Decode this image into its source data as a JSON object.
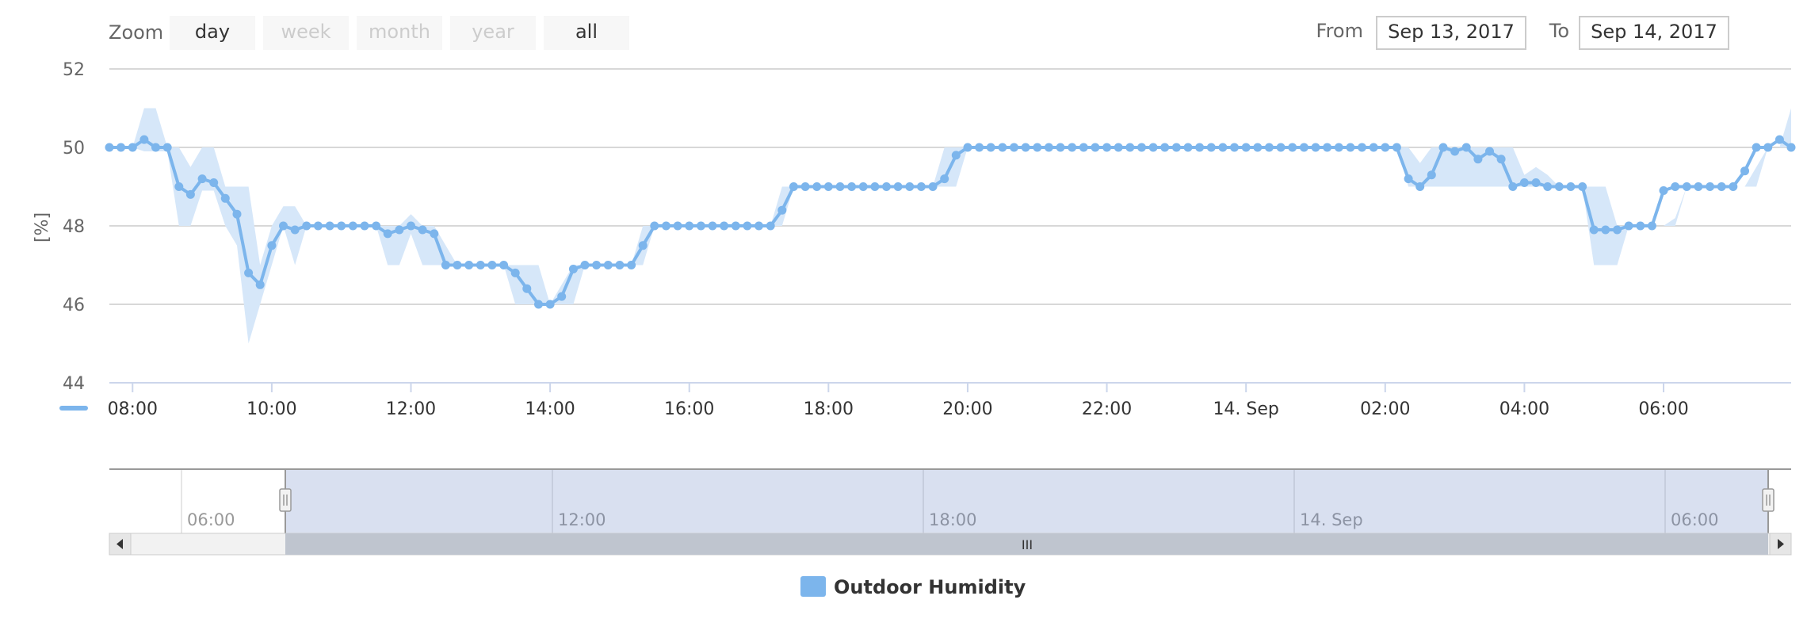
{
  "toolbar": {
    "zoom_label": "Zoom",
    "buttons": [
      {
        "label": "day",
        "enabled": true
      },
      {
        "label": "week",
        "enabled": false
      },
      {
        "label": "month",
        "enabled": false
      },
      {
        "label": "year",
        "enabled": false
      },
      {
        "label": "all",
        "enabled": true
      }
    ],
    "from_label": "From",
    "from_value": "Sep 13, 2017",
    "to_label": "To",
    "to_value": "Sep 14, 2017"
  },
  "legend": {
    "label": "Outdoor Humidity"
  },
  "navigator": {
    "tick_labels": [
      "06:00",
      "12:00",
      "18:00",
      "14. Sep",
      "06:00"
    ],
    "scrollbar_grip": "III"
  },
  "colors": {
    "series": "#7cb5ec",
    "range": "#d6e7f9",
    "grid": "#d8d8d8",
    "axis": "#ccd6eb",
    "navigator_mask": "rgba(102,133,194,0.25)"
  },
  "chart_data": {
    "type": "line",
    "title": "",
    "ylabel": "[%]",
    "ylim": [
      44,
      52
    ],
    "y_ticks": [
      "44",
      "46",
      "48",
      "50",
      "52"
    ],
    "x_ticks": [
      {
        "t": "2017-09-13 08:00",
        "label": "08:00"
      },
      {
        "t": "2017-09-13 10:00",
        "label": "10:00"
      },
      {
        "t": "2017-09-13 12:00",
        "label": "12:00"
      },
      {
        "t": "2017-09-13 14:00",
        "label": "14:00"
      },
      {
        "t": "2017-09-13 16:00",
        "label": "16:00"
      },
      {
        "t": "2017-09-13 18:00",
        "label": "18:00"
      },
      {
        "t": "2017-09-13 20:00",
        "label": "20:00"
      },
      {
        "t": "2017-09-13 22:00",
        "label": "22:00"
      },
      {
        "t": "2017-09-14 00:00",
        "label": "14. Sep"
      },
      {
        "t": "2017-09-14 02:00",
        "label": "02:00"
      },
      {
        "t": "2017-09-14 04:00",
        "label": "04:00"
      },
      {
        "t": "2017-09-14 06:00",
        "label": "06:00"
      }
    ],
    "xlim": [
      "2017-09-13 07:40",
      "2017-09-14 07:50"
    ],
    "series": [
      {
        "name": "Outdoor Humidity",
        "x": [
          "2017-09-13 07:40",
          "2017-09-13 07:50",
          "2017-09-13 08:00",
          "2017-09-13 08:10",
          "2017-09-13 08:20",
          "2017-09-13 08:30",
          "2017-09-13 08:40",
          "2017-09-13 08:50",
          "2017-09-13 09:00",
          "2017-09-13 09:10",
          "2017-09-13 09:20",
          "2017-09-13 09:30",
          "2017-09-13 09:40",
          "2017-09-13 09:50",
          "2017-09-13 10:00",
          "2017-09-13 10:10",
          "2017-09-13 10:20",
          "2017-09-13 10:30",
          "2017-09-13 10:40",
          "2017-09-13 10:50",
          "2017-09-13 11:00",
          "2017-09-13 11:10",
          "2017-09-13 11:20",
          "2017-09-13 11:30",
          "2017-09-13 11:40",
          "2017-09-13 11:50",
          "2017-09-13 12:00",
          "2017-09-13 12:10",
          "2017-09-13 12:20",
          "2017-09-13 12:30",
          "2017-09-13 12:40",
          "2017-09-13 12:50",
          "2017-09-13 13:00",
          "2017-09-13 13:10",
          "2017-09-13 13:20",
          "2017-09-13 13:30",
          "2017-09-13 13:40",
          "2017-09-13 13:50",
          "2017-09-13 14:00",
          "2017-09-13 14:10",
          "2017-09-13 14:20",
          "2017-09-13 14:30",
          "2017-09-13 14:40",
          "2017-09-13 14:50",
          "2017-09-13 15:00",
          "2017-09-13 15:10",
          "2017-09-13 15:20",
          "2017-09-13 15:30",
          "2017-09-13 15:40",
          "2017-09-13 15:50",
          "2017-09-13 16:00",
          "2017-09-13 16:10",
          "2017-09-13 16:20",
          "2017-09-13 16:30",
          "2017-09-13 16:40",
          "2017-09-13 16:50",
          "2017-09-13 17:00",
          "2017-09-13 17:10",
          "2017-09-13 17:20",
          "2017-09-13 17:30",
          "2017-09-13 17:40",
          "2017-09-13 17:50",
          "2017-09-13 18:00",
          "2017-09-13 18:10",
          "2017-09-13 18:20",
          "2017-09-13 18:30",
          "2017-09-13 18:40",
          "2017-09-13 18:50",
          "2017-09-13 19:00",
          "2017-09-13 19:10",
          "2017-09-13 19:20",
          "2017-09-13 19:30",
          "2017-09-13 19:40",
          "2017-09-13 19:50",
          "2017-09-13 20:00",
          "2017-09-13 20:10",
          "2017-09-13 20:20",
          "2017-09-13 20:30",
          "2017-09-13 20:40",
          "2017-09-13 20:50",
          "2017-09-13 21:00",
          "2017-09-13 21:10",
          "2017-09-13 21:20",
          "2017-09-13 21:30",
          "2017-09-13 21:40",
          "2017-09-13 21:50",
          "2017-09-13 22:00",
          "2017-09-13 22:10",
          "2017-09-13 22:20",
          "2017-09-13 22:30",
          "2017-09-13 22:40",
          "2017-09-13 22:50",
          "2017-09-13 23:00",
          "2017-09-13 23:10",
          "2017-09-13 23:20",
          "2017-09-13 23:30",
          "2017-09-13 23:40",
          "2017-09-13 23:50",
          "2017-09-14 00:00",
          "2017-09-14 00:10",
          "2017-09-14 00:20",
          "2017-09-14 00:30",
          "2017-09-14 00:40",
          "2017-09-14 00:50",
          "2017-09-14 01:00",
          "2017-09-14 01:10",
          "2017-09-14 01:20",
          "2017-09-14 01:30",
          "2017-09-14 01:40",
          "2017-09-14 01:50",
          "2017-09-14 02:00",
          "2017-09-14 02:10",
          "2017-09-14 02:20",
          "2017-09-14 02:30",
          "2017-09-14 02:40",
          "2017-09-14 02:50",
          "2017-09-14 03:00",
          "2017-09-14 03:10",
          "2017-09-14 03:20",
          "2017-09-14 03:30",
          "2017-09-14 03:40",
          "2017-09-14 03:50",
          "2017-09-14 04:00",
          "2017-09-14 04:10",
          "2017-09-14 04:20",
          "2017-09-14 04:30",
          "2017-09-14 04:40",
          "2017-09-14 04:50",
          "2017-09-14 05:00",
          "2017-09-14 05:10",
          "2017-09-14 05:20",
          "2017-09-14 05:30",
          "2017-09-14 05:40",
          "2017-09-14 05:50",
          "2017-09-14 06:00",
          "2017-09-14 06:10",
          "2017-09-14 06:20",
          "2017-09-14 06:30",
          "2017-09-14 06:40",
          "2017-09-14 06:50",
          "2017-09-14 07:00",
          "2017-09-14 07:10",
          "2017-09-14 07:20",
          "2017-09-14 07:30",
          "2017-09-14 07:40",
          "2017-09-14 07:50"
        ],
        "y": [
          50,
          50,
          50,
          50.2,
          50,
          50,
          49,
          48.8,
          49.2,
          49.1,
          48.7,
          48.3,
          46.8,
          46.5,
          47.5,
          48,
          47.9,
          48,
          48,
          48,
          48,
          48,
          48,
          48,
          47.8,
          47.9,
          48,
          47.9,
          47.8,
          47,
          47,
          47,
          47,
          47,
          47,
          46.8,
          46.4,
          46,
          46,
          46.2,
          46.9,
          47,
          47,
          47,
          47,
          47,
          47.5,
          48,
          48,
          48,
          48,
          48,
          48,
          48,
          48,
          48,
          48,
          48,
          48.4,
          49,
          49,
          49,
          49,
          49,
          49,
          49,
          49,
          49,
          49,
          49,
          49,
          49,
          49.2,
          49.8,
          50,
          50,
          50,
          50,
          50,
          50,
          50,
          50,
          50,
          50,
          50,
          50,
          50,
          50,
          50,
          50,
          50,
          50,
          50,
          50,
          50,
          50,
          50,
          50,
          50,
          50,
          50,
          50,
          50,
          50,
          50,
          50,
          50,
          50,
          50,
          50,
          50,
          50,
          49.2,
          49,
          49.3,
          50,
          49.9,
          50,
          49.7,
          49.9,
          49.7,
          49,
          49.1,
          49.1,
          49,
          49,
          49,
          49,
          47.9,
          47.9,
          47.9,
          48,
          48,
          48,
          48.9,
          49,
          49,
          49,
          49,
          49,
          49,
          49.4,
          50,
          50,
          50.2,
          50
        ],
        "range_low": [
          50,
          50,
          50,
          49.9,
          49.9,
          49.9,
          48,
          48,
          48.9,
          48.9,
          48,
          47.5,
          45,
          46,
          47,
          48,
          47,
          48,
          48,
          48,
          48,
          48,
          48,
          48,
          47,
          47,
          47.8,
          47,
          47,
          47,
          47,
          47,
          47,
          47,
          47,
          46,
          46,
          46,
          46,
          46,
          46,
          47,
          47,
          47,
          47,
          47,
          47,
          48,
          48,
          48,
          48,
          48,
          48,
          48,
          48,
          48,
          48,
          48,
          48,
          49,
          49,
          49,
          49,
          49,
          49,
          49,
          49,
          49,
          49,
          49,
          49,
          49,
          49,
          49,
          50,
          50,
          50,
          50,
          50,
          50,
          50,
          50,
          50,
          50,
          50,
          50,
          50,
          50,
          50,
          50,
          50,
          50,
          50,
          50,
          50,
          50,
          50,
          50,
          50,
          50,
          50,
          50,
          50,
          50,
          50,
          50,
          50,
          50,
          50,
          50,
          50,
          50,
          49,
          49,
          49,
          49,
          49,
          49,
          49,
          49,
          49,
          49,
          49,
          49,
          49,
          49,
          49,
          49,
          47,
          47,
          47,
          48,
          48,
          48,
          48,
          48,
          49,
          49,
          49,
          49,
          49,
          49,
          49,
          50,
          50,
          50
        ],
        "range_high": [
          50,
          50,
          50,
          51,
          51,
          50,
          50,
          49.5,
          50,
          50,
          49,
          49,
          49,
          47,
          48,
          48.5,
          48.5,
          48,
          48,
          48,
          48,
          48,
          48,
          48,
          48,
          48,
          48.3,
          48,
          48,
          47.5,
          47,
          47,
          47,
          47,
          47,
          47,
          47,
          47,
          46,
          46.5,
          47,
          47,
          47,
          47,
          47,
          47,
          48,
          48,
          48,
          48,
          48,
          48,
          48,
          48,
          48,
          48,
          48,
          48,
          49,
          49,
          49,
          49,
          49,
          49,
          49,
          49,
          49,
          49,
          49,
          49,
          49,
          49,
          50,
          50,
          50,
          50,
          50,
          50,
          50,
          50,
          50,
          50,
          50,
          50,
          50,
          50,
          50,
          50,
          50,
          50,
          50,
          50,
          50,
          50,
          50,
          50,
          50,
          50,
          50,
          50,
          50,
          50,
          50,
          50,
          50,
          50,
          50,
          50,
          50,
          50,
          50,
          50,
          50,
          49.6,
          50,
          50,
          50,
          50,
          50,
          50,
          50,
          50,
          49.3,
          49.5,
          49.3,
          49,
          49,
          49,
          49,
          49,
          48,
          48,
          48,
          48,
          48,
          48.2,
          49,
          49,
          49,
          49,
          49,
          49,
          49.5,
          50,
          50,
          51,
          50
        ]
      }
    ]
  }
}
